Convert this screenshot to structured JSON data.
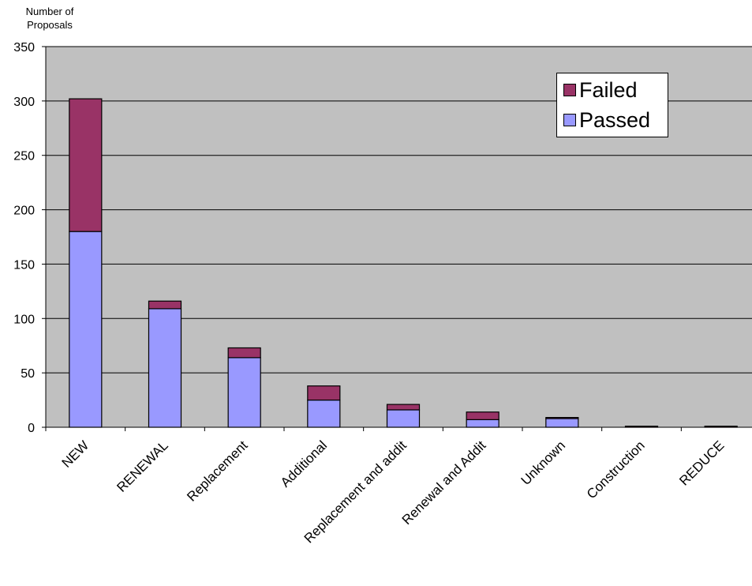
{
  "chart_data": {
    "type": "bar",
    "stacked": true,
    "title": "",
    "xlabel": "",
    "ylabel": "Number of Proposals",
    "ylim": [
      0,
      350
    ],
    "yticks": [
      0,
      50,
      100,
      150,
      200,
      250,
      300,
      350
    ],
    "grid": true,
    "legend_position": "top-right",
    "categories": [
      "NEW",
      "RENEWAL",
      "Replacement",
      "Additional",
      "Replacement and addit",
      "Renewal and Addit",
      "Unknown",
      "Construction",
      "REDUCE"
    ],
    "series": [
      {
        "name": "Passed",
        "color": "#9999ff",
        "values": [
          180,
          109,
          64,
          25,
          16,
          7,
          8,
          0,
          0
        ]
      },
      {
        "name": "Failed",
        "color": "#993366",
        "values": [
          122,
          7,
          9,
          13,
          5,
          7,
          1,
          1,
          1
        ]
      }
    ],
    "plot_background": "#c0c0c0"
  }
}
